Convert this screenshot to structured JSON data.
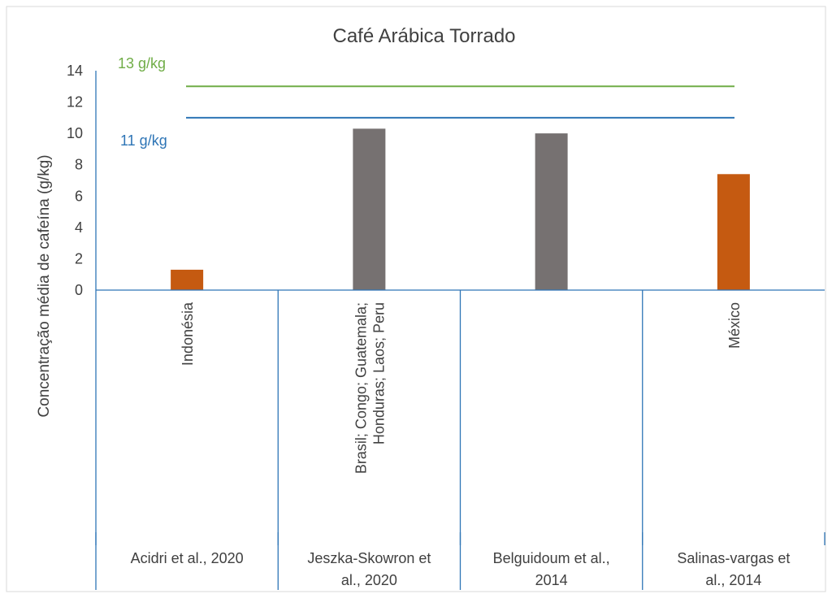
{
  "chart_data": {
    "type": "bar",
    "title": "Café Arábica Torrado",
    "ylabel": "Concentração média de cafeína (g/kg)",
    "xlabel": "",
    "ylim": [
      0,
      14
    ],
    "yticks": [
      "0",
      "2",
      "4",
      "6",
      "8",
      "10",
      "12",
      "14"
    ],
    "grid": false,
    "categories": [
      {
        "origin": "Indonésia",
        "origin_lines": [
          "Indonésia"
        ],
        "source_lines": [
          "Acidri et al., 2020"
        ],
        "value": 1.3,
        "color": "#c55a11"
      },
      {
        "origin": "Brasil; Congo; Guatemala; Honduras; Laos; Peru",
        "origin_lines": [
          "Brasil; Congo; Guatemala;",
          "Honduras; Laos; Peru"
        ],
        "source_lines": [
          "Jeszka-Skowron et",
          "al., 2020"
        ],
        "value": 10.3,
        "color": "#767171"
      },
      {
        "origin": "",
        "origin_lines": [],
        "source_lines": [
          "Belguidoum et al.,",
          "2014"
        ],
        "value": 10.0,
        "color": "#767171"
      },
      {
        "origin": "México",
        "origin_lines": [
          "México"
        ],
        "source_lines": [
          "Salinas-vargas et",
          "al., 2014"
        ],
        "value": 7.4,
        "color": "#c55a11"
      }
    ],
    "reference_lines": [
      {
        "label": "13 g/kg",
        "value": 13,
        "color": "#70ad47"
      },
      {
        "label": "11 g/kg",
        "value": 11,
        "color": "#2e75b6"
      }
    ]
  }
}
